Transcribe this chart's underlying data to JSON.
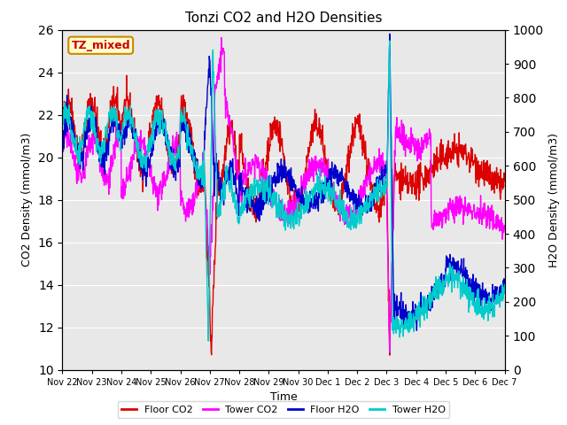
{
  "title": "Tonzi CO2 and H2O Densities",
  "xlabel": "Time",
  "ylabel_left": "CO2 Density (mmol/m3)",
  "ylabel_right": "H2O Density (mmol/m3)",
  "ylim_left": [
    10,
    26
  ],
  "ylim_right": [
    0,
    1000
  ],
  "yticks_left": [
    10,
    12,
    14,
    16,
    18,
    20,
    22,
    24,
    26
  ],
  "yticks_right": [
    0,
    100,
    200,
    300,
    400,
    500,
    600,
    700,
    800,
    900,
    1000
  ],
  "xtick_labels": [
    "Nov 22",
    "Nov 23",
    "Nov 24",
    "Nov 25",
    "Nov 26",
    "Nov 27",
    "Nov 28",
    "Nov 29",
    "Nov 30",
    "Dec 1",
    "Dec 2",
    "Dec 3",
    "Dec 4",
    "Dec 5",
    "Dec 6",
    "Dec 7"
  ],
  "annotation_text": "TZ_mixed",
  "annotation_color": "#cc0000",
  "annotation_bg": "#ffffcc",
  "annotation_border": "#cc8800",
  "legend_labels": [
    "Floor CO2",
    "Tower CO2",
    "Floor H2O",
    "Tower H2O"
  ],
  "colors": {
    "floor_co2": "#dd0000",
    "tower_co2": "#ff00ff",
    "floor_h2o": "#0000cc",
    "tower_h2o": "#00cccc"
  },
  "background_color": "#e8e8e8",
  "linewidth": 1.0
}
